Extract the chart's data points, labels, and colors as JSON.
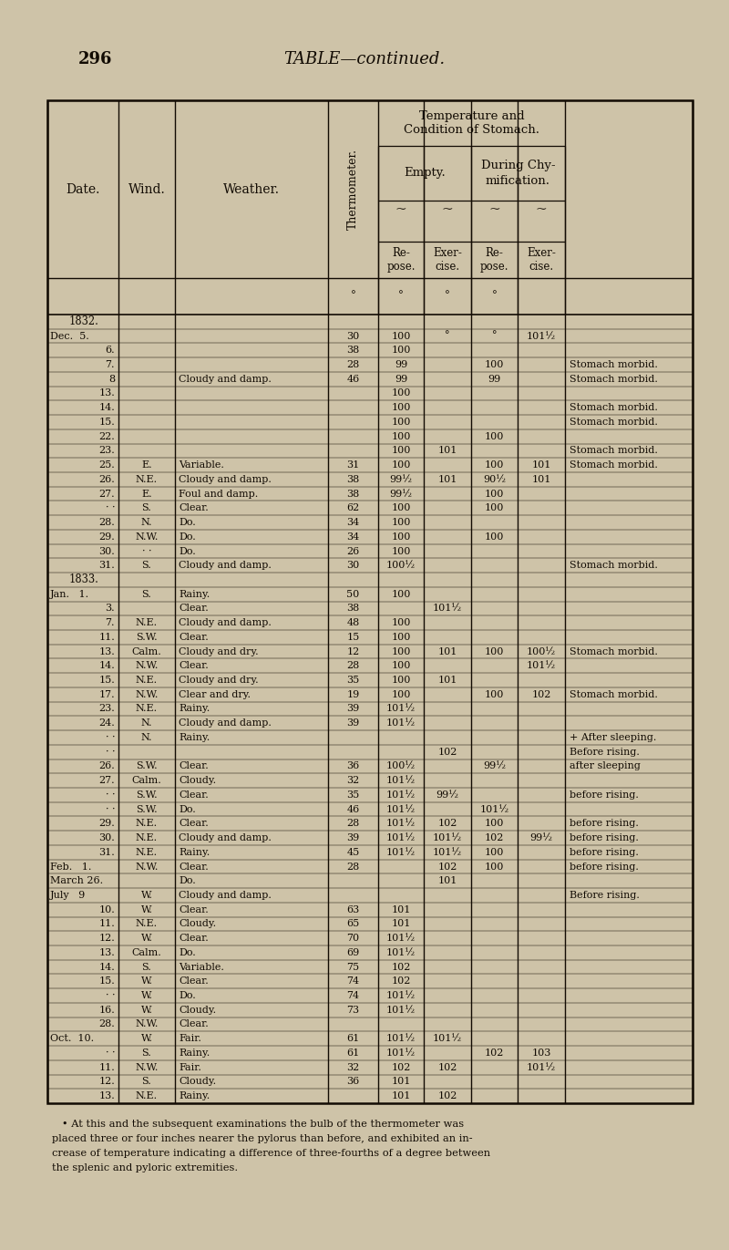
{
  "page_number": "296",
  "page_title": "TABLE—continued.",
  "bg_color": "#cec3a8",
  "text_color": "#120b03",
  "rows": [
    [
      "1832.",
      "",
      "",
      "",
      "",
      "",
      "",
      "",
      ""
    ],
    [
      "Dec.  5.",
      "",
      "",
      "30",
      "100",
      "°",
      "°",
      "101½",
      ""
    ],
    [
      "6.",
      "",
      "",
      "38",
      "100",
      "",
      "",
      "",
      ""
    ],
    [
      "7.",
      "",
      "",
      "28",
      "99",
      "",
      "100",
      "",
      "Stomach morbid."
    ],
    [
      "8",
      "",
      "Cloudy and damp.",
      "46",
      "99",
      "",
      "99",
      "",
      "Stomach morbid."
    ],
    [
      "13.",
      "",
      "",
      "",
      "100",
      "",
      "",
      "",
      ""
    ],
    [
      "14.",
      "",
      "",
      "",
      "100",
      "",
      "",
      "",
      "Stomach morbid."
    ],
    [
      "15.",
      "",
      "",
      "",
      "100",
      "",
      "",
      "",
      "Stomach morbid."
    ],
    [
      "22.",
      "",
      "",
      "",
      "100",
      "",
      "100",
      "",
      ""
    ],
    [
      "23.",
      "",
      "",
      "",
      "100",
      "101",
      "",
      "",
      "Stomach morbid."
    ],
    [
      "25.",
      "E.",
      "Variable.",
      "31",
      "100",
      "",
      "100",
      "101",
      "Stomach morbid."
    ],
    [
      "26.",
      "N.E.",
      "Cloudy and damp.",
      "38",
      "99½",
      "101",
      "90½",
      "101",
      ""
    ],
    [
      "27.",
      "E.",
      "Foul and damp.",
      "38",
      "99½",
      "",
      "100",
      "",
      ""
    ],
    [
      "· ·",
      "S.",
      "Clear.",
      "62",
      "100",
      "",
      "100",
      "",
      ""
    ],
    [
      "28.",
      "N.",
      "Do.",
      "34",
      "100",
      "",
      "",
      "",
      ""
    ],
    [
      "29.",
      "N.W.",
      "Do.",
      "34",
      "100",
      "",
      "100",
      "",
      ""
    ],
    [
      "30.",
      "· ·",
      "Do.",
      "26",
      "100",
      "",
      "",
      "",
      ""
    ],
    [
      "31.",
      "S.",
      "Cloudy and damp.",
      "30",
      "100½",
      "",
      "",
      "",
      "Stomach morbid."
    ],
    [
      "1833.",
      "",
      "",
      "",
      "",
      "",
      "",
      "",
      ""
    ],
    [
      "Jan.   1.",
      "S.",
      "Rainy.",
      "50",
      "100",
      "",
      "",
      "",
      ""
    ],
    [
      "3.",
      "",
      "Clear.",
      "38",
      "",
      "101½",
      "",
      "",
      ""
    ],
    [
      "7.",
      "N.E.",
      "Cloudy and damp.",
      "48",
      "100",
      "",
      "",
      "",
      ""
    ],
    [
      "11.",
      "S.W.",
      "Clear.",
      "15",
      "100",
      "",
      "",
      "",
      ""
    ],
    [
      "13.",
      "Calm.",
      "Cloudy and dry.",
      "12",
      "100",
      "101",
      "100",
      "100½",
      "Stomach morbid."
    ],
    [
      "14.",
      "N.W.",
      "Clear.",
      "28",
      "100",
      "",
      "",
      "101½",
      ""
    ],
    [
      "15.",
      "N.E.",
      "Cloudy and dry.",
      "35",
      "100",
      "101",
      "",
      "",
      ""
    ],
    [
      "17.",
      "N.W.",
      "Clear and dry.",
      "19",
      "100",
      "",
      "100",
      "102",
      "Stomach morbid."
    ],
    [
      "23.",
      "N.E.",
      "Rainy.",
      "39",
      "101½",
      "",
      "",
      "",
      ""
    ],
    [
      "24.",
      "N.",
      "Cloudy and damp.",
      "39",
      "101½",
      "",
      "",
      "",
      ""
    ],
    [
      "· ·",
      "N.",
      "Rainy.",
      "",
      "",
      "",
      "",
      "",
      "+ After sleeping."
    ],
    [
      "· ·",
      "",
      "",
      "",
      "",
      "102",
      "",
      "",
      "Before rising."
    ],
    [
      "26.",
      "S.W.",
      "Clear.",
      "36",
      "100½",
      "",
      "99½",
      "",
      "after sleeping"
    ],
    [
      "27.",
      "Calm.",
      "Cloudy.",
      "32",
      "101½",
      "",
      "",
      "",
      ""
    ],
    [
      "· ·",
      "S.W.",
      "Clear.",
      "35",
      "101½",
      "99½",
      "",
      "",
      "before rising."
    ],
    [
      "· ·",
      "S.W.",
      "Do.",
      "46",
      "101½",
      "",
      "101½",
      "",
      ""
    ],
    [
      "29.",
      "N.E.",
      "Clear.",
      "28",
      "101½",
      "102",
      "100",
      "",
      "before rising."
    ],
    [
      "30.",
      "N.E.",
      "Cloudy and damp.",
      "39",
      "101½",
      "101½",
      "102",
      "99½",
      "before rising."
    ],
    [
      "31.",
      "N.E.",
      "Rainy.",
      "45",
      "101½",
      "101½",
      "100",
      "",
      "before rising."
    ],
    [
      "Feb.   1.",
      "N.W.",
      "Clear.",
      "28",
      "",
      "102",
      "100",
      "",
      "before rising."
    ],
    [
      "March 26.",
      "",
      "Do.",
      "",
      "",
      "101",
      "",
      "",
      ""
    ],
    [
      "July   9",
      "W.",
      "Cloudy and damp.",
      "",
      "",
      "",
      "",
      "",
      "Before rising."
    ],
    [
      "10.",
      "W.",
      "Clear.",
      "63",
      "101",
      "",
      "",
      "",
      ""
    ],
    [
      "11.",
      "N.E.",
      "Cloudy.",
      "65",
      "101",
      "",
      "",
      "",
      ""
    ],
    [
      "12.",
      "W.",
      "Clear.",
      "70",
      "101½",
      "",
      "",
      "",
      ""
    ],
    [
      "13.",
      "Calm.",
      "Do.",
      "69",
      "101½",
      "",
      "",
      "",
      ""
    ],
    [
      "14.",
      "S.",
      "Variable.",
      "75",
      "102",
      "",
      "",
      "",
      ""
    ],
    [
      "15.",
      "W.",
      "Clear.",
      "74",
      "102",
      "",
      "",
      "",
      ""
    ],
    [
      "· ·",
      "W.",
      "Do.",
      "74",
      "101½",
      "",
      "",
      "",
      ""
    ],
    [
      "16.",
      "W.",
      "Cloudy.",
      "73",
      "101½",
      "",
      "",
      "",
      ""
    ],
    [
      "28.",
      "N.W.",
      "Clear.",
      "",
      "",
      "",
      "",
      "",
      ""
    ],
    [
      "Oct.  10.",
      "W.",
      "Fair.",
      "61",
      "101½",
      "101½",
      "",
      "",
      ""
    ],
    [
      "· ·",
      "S.",
      "Rainy.",
      "61",
      "101½",
      "",
      "102",
      "103",
      ""
    ],
    [
      "11.",
      "N.W.",
      "Fair.",
      "32",
      "102",
      "102",
      "",
      "101½",
      ""
    ],
    [
      "12.",
      "S.",
      "Cloudy.",
      "36",
      "101",
      "",
      "",
      "",
      ""
    ],
    [
      "13.",
      "N.E.",
      "Rainy.",
      "",
      "101",
      "102",
      "",
      "",
      ""
    ]
  ],
  "footnote_lines": [
    "   • At this and the subsequent examinations the bulb of the thermometer was",
    "placed three or four inches nearer the pylorus than before, and exhibited an in-",
    "crease of temperature indicating a difference of three-fourths of a degree between",
    "the splenic and pyloric extremities."
  ]
}
